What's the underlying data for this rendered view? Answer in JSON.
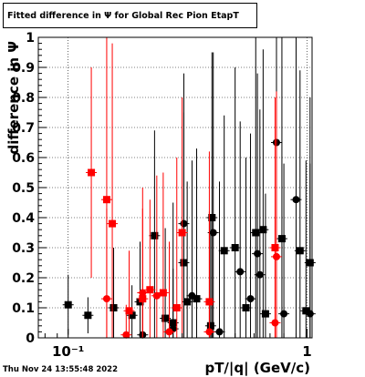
{
  "chart_data": {
    "type": "scatter",
    "title": "Fitted difference in  Ψ  for Global Rec Pion EtapT",
    "xlabel": "pT/|q| (GeV/c)",
    "ylabel": "difference in  Ψ",
    "x_scale": "log",
    "xlim": [
      0.075,
      1.05
    ],
    "ylim": [
      0,
      1
    ],
    "x_tick_labels": [
      "10⁻¹",
      "1"
    ],
    "y_tick_labels": [
      "0",
      "0.1",
      "0.2",
      "0.3",
      "0.4",
      "0.5",
      "0.6",
      "0.7",
      "0.8",
      "0.9",
      "1"
    ],
    "grid": true,
    "series_colors": [
      "#000000",
      "#000000",
      "#ff0000",
      "#ff0000"
    ],
    "series": [
      {
        "marker": "square",
        "points": [
          {
            "x": 0.1,
            "y": 0.11,
            "yerr": 0.1
          },
          {
            "x": 0.121,
            "y": 0.075,
            "yerr": 0.06
          },
          {
            "x": 0.155,
            "y": 0.1,
            "yerr": 0.2
          },
          {
            "x": 0.185,
            "y": 0.075,
            "yerr": 0.1
          },
          {
            "x": 0.2,
            "y": 0.12,
            "yerr": 0.2
          },
          {
            "x": 0.23,
            "y": 0.34,
            "yerr": 0.35
          },
          {
            "x": 0.255,
            "y": 0.065,
            "yerr": 0.3
          },
          {
            "x": 0.275,
            "y": 0.05,
            "yerr": 0.4
          },
          {
            "x": 0.305,
            "y": 0.25,
            "yerr": 0.5
          },
          {
            "x": 0.315,
            "y": 0.12,
            "yerr": 0.4
          },
          {
            "x": 0.345,
            "y": 0.13,
            "yerr": 0.5
          },
          {
            "x": 0.395,
            "y": 0.04,
            "yerr": 0.35
          },
          {
            "x": 0.4,
            "y": 0.4,
            "yerr": 0.55
          },
          {
            "x": 0.45,
            "y": 0.29,
            "yerr": 0.45
          },
          {
            "x": 0.5,
            "y": 0.3,
            "yerr": 0.6
          },
          {
            "x": 0.555,
            "y": 0.1,
            "yerr": 0.5
          },
          {
            "x": 0.61,
            "y": 0.35,
            "yerr": 0.7
          },
          {
            "x": 0.655,
            "y": 0.36,
            "yerr": 0.6
          },
          {
            "x": 0.67,
            "y": 0.08,
            "yerr": 0.4
          },
          {
            "x": 0.785,
            "y": 0.33,
            "yerr": 0.7
          },
          {
            "x": 0.935,
            "y": 0.29,
            "yerr": 0.6
          },
          {
            "x": 0.99,
            "y": 0.09,
            "yerr": 0.5
          },
          {
            "x": 1.03,
            "y": 0.25,
            "yerr": 0.55
          }
        ]
      },
      {
        "marker": "circle",
        "points": [
          {
            "x": 0.205,
            "y": 0.01,
            "yerr": 0.15
          },
          {
            "x": 0.275,
            "y": 0.03,
            "yerr": 0.2
          },
          {
            "x": 0.305,
            "y": 0.38,
            "yerr": 0.5
          },
          {
            "x": 0.33,
            "y": 0.14,
            "yerr": 0.45
          },
          {
            "x": 0.405,
            "y": 0.35,
            "yerr": 0.6
          },
          {
            "x": 0.43,
            "y": 0.02,
            "yerr": 0.5
          },
          {
            "x": 0.525,
            "y": 0.22,
            "yerr": 0.5
          },
          {
            "x": 0.58,
            "y": 0.13,
            "yerr": 0.55
          },
          {
            "x": 0.62,
            "y": 0.28,
            "yerr": 0.6
          },
          {
            "x": 0.635,
            "y": 0.21,
            "yerr": 0.55
          },
          {
            "x": 0.745,
            "y": 0.65,
            "yerr": 0.6
          },
          {
            "x": 0.8,
            "y": 0.08,
            "yerr": 0.5
          },
          {
            "x": 0.9,
            "y": 0.46,
            "yerr": 0.6
          },
          {
            "x": 1.03,
            "y": 0.08,
            "yerr": 0.5
          }
        ]
      },
      {
        "marker": "square",
        "points": [
          {
            "x": 0.125,
            "y": 0.55,
            "yerr": 0.35
          },
          {
            "x": 0.145,
            "y": 0.46,
            "yerr": 0.55
          },
          {
            "x": 0.153,
            "y": 0.38,
            "yerr": 0.6
          },
          {
            "x": 0.18,
            "y": 0.09,
            "yerr": 0.2
          },
          {
            "x": 0.205,
            "y": 0.13,
            "yerr": 0.3
          },
          {
            "x": 0.22,
            "y": 0.16,
            "yerr": 0.3
          },
          {
            "x": 0.25,
            "y": 0.15,
            "yerr": 0.4
          },
          {
            "x": 0.285,
            "y": 0.1,
            "yerr": 0.5
          },
          {
            "x": 0.3,
            "y": 0.35,
            "yerr": 0.45
          },
          {
            "x": 0.39,
            "y": 0.12,
            "yerr": 0.5
          },
          {
            "x": 0.735,
            "y": 0.3,
            "yerr": 0.5
          }
        ]
      },
      {
        "marker": "circle",
        "points": [
          {
            "x": 0.145,
            "y": 0.13,
            "yerr": 0.3
          },
          {
            "x": 0.175,
            "y": 0.01,
            "yerr": 0.1
          },
          {
            "x": 0.205,
            "y": 0.15,
            "yerr": 0.35
          },
          {
            "x": 0.235,
            "y": 0.14,
            "yerr": 0.4
          },
          {
            "x": 0.265,
            "y": 0.02,
            "yerr": 0.3
          },
          {
            "x": 0.39,
            "y": 0.02,
            "yerr": 0.4
          },
          {
            "x": 0.735,
            "y": 0.05,
            "yerr": 0.35
          },
          {
            "x": 0.745,
            "y": 0.27,
            "yerr": 0.55
          }
        ]
      }
    ],
    "footer": "Thu Nov 24 13:55:48 2022"
  }
}
